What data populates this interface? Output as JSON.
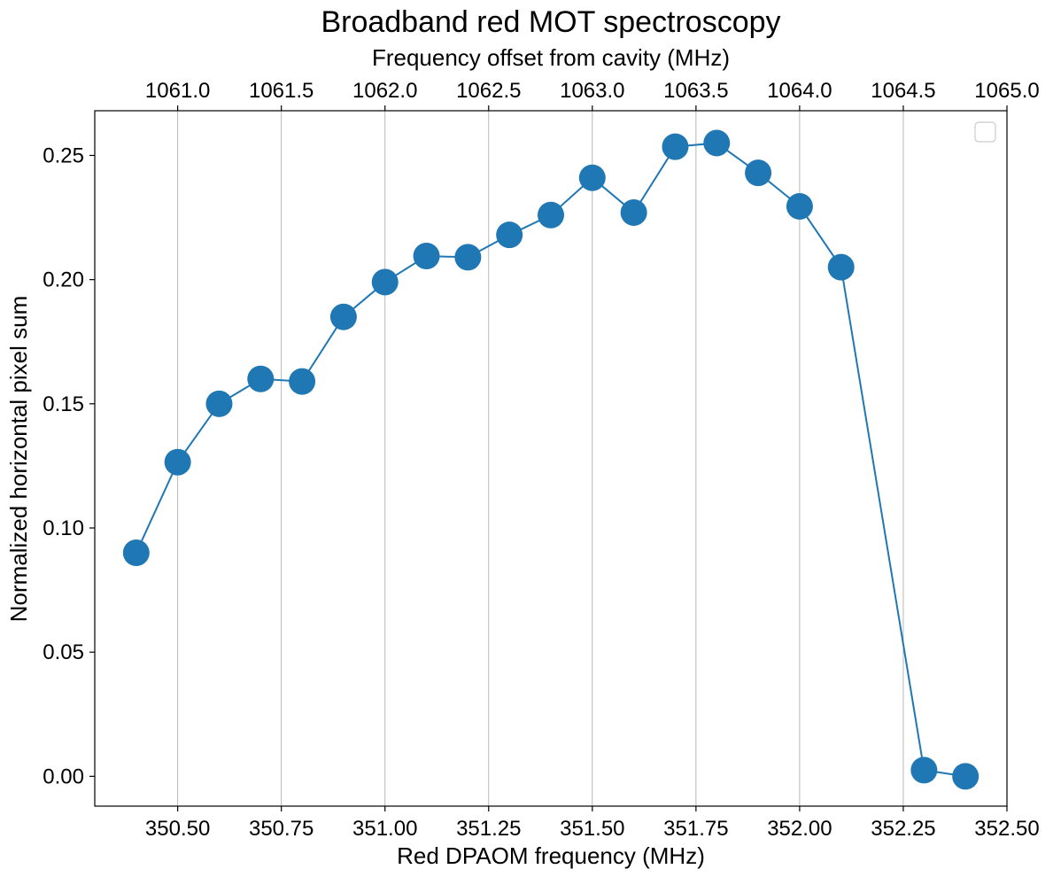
{
  "chart_data": {
    "type": "scatter",
    "title": "Broadband red MOT spectroscopy",
    "xlabel": "Red DPAOM frequency (MHz)",
    "ylabel": "Normalized horizontal pixel sum",
    "x2label": "Frequency offset from cavity (MHz)",
    "xlim": [
      350.3,
      352.5
    ],
    "ylim": [
      -0.012,
      0.268
    ],
    "xticks": [
      350.5,
      350.75,
      351.0,
      351.25,
      351.5,
      351.75,
      352.0,
      352.25,
      352.5
    ],
    "xtick_labels": [
      "350.50",
      "350.75",
      "351.00",
      "351.25",
      "351.50",
      "351.75",
      "352.00",
      "352.25",
      "352.50"
    ],
    "yticks": [
      0.0,
      0.05,
      0.1,
      0.15,
      0.2,
      0.25
    ],
    "ytick_labels": [
      "0.00",
      "0.05",
      "0.10",
      "0.15",
      "0.20",
      "0.25"
    ],
    "x2ticks": [
      1061.0,
      1061.5,
      1062.0,
      1062.5,
      1063.0,
      1063.5,
      1064.0,
      1064.5,
      1065.0
    ],
    "x2tick_labels": [
      "1061.0",
      "1061.5",
      "1062.0",
      "1062.5",
      "1063.0",
      "1063.5",
      "1064.0",
      "1064.5",
      "1065.0"
    ],
    "x2_grid_positions": [
      350.5,
      350.75,
      351.0,
      351.25,
      351.5,
      351.75,
      352.0,
      352.25,
      352.5
    ],
    "grid": "vertical, top axis ticks",
    "legend": "upper right (empty)",
    "series": [
      {
        "color": "#1f77b4",
        "marker": "circle",
        "line": true,
        "x": [
          350.4,
          350.5,
          350.6,
          350.7,
          350.8,
          350.9,
          351.0,
          351.1,
          351.2,
          351.3,
          351.4,
          351.5,
          351.6,
          351.7,
          351.8,
          351.9,
          352.0,
          352.1,
          352.3,
          352.4
        ],
        "y": [
          0.09,
          0.1265,
          0.15,
          0.16,
          0.159,
          0.185,
          0.199,
          0.2095,
          0.209,
          0.218,
          0.226,
          0.241,
          0.227,
          0.2535,
          0.255,
          0.243,
          0.2295,
          0.205,
          0.0025,
          0.0
        ]
      }
    ]
  }
}
